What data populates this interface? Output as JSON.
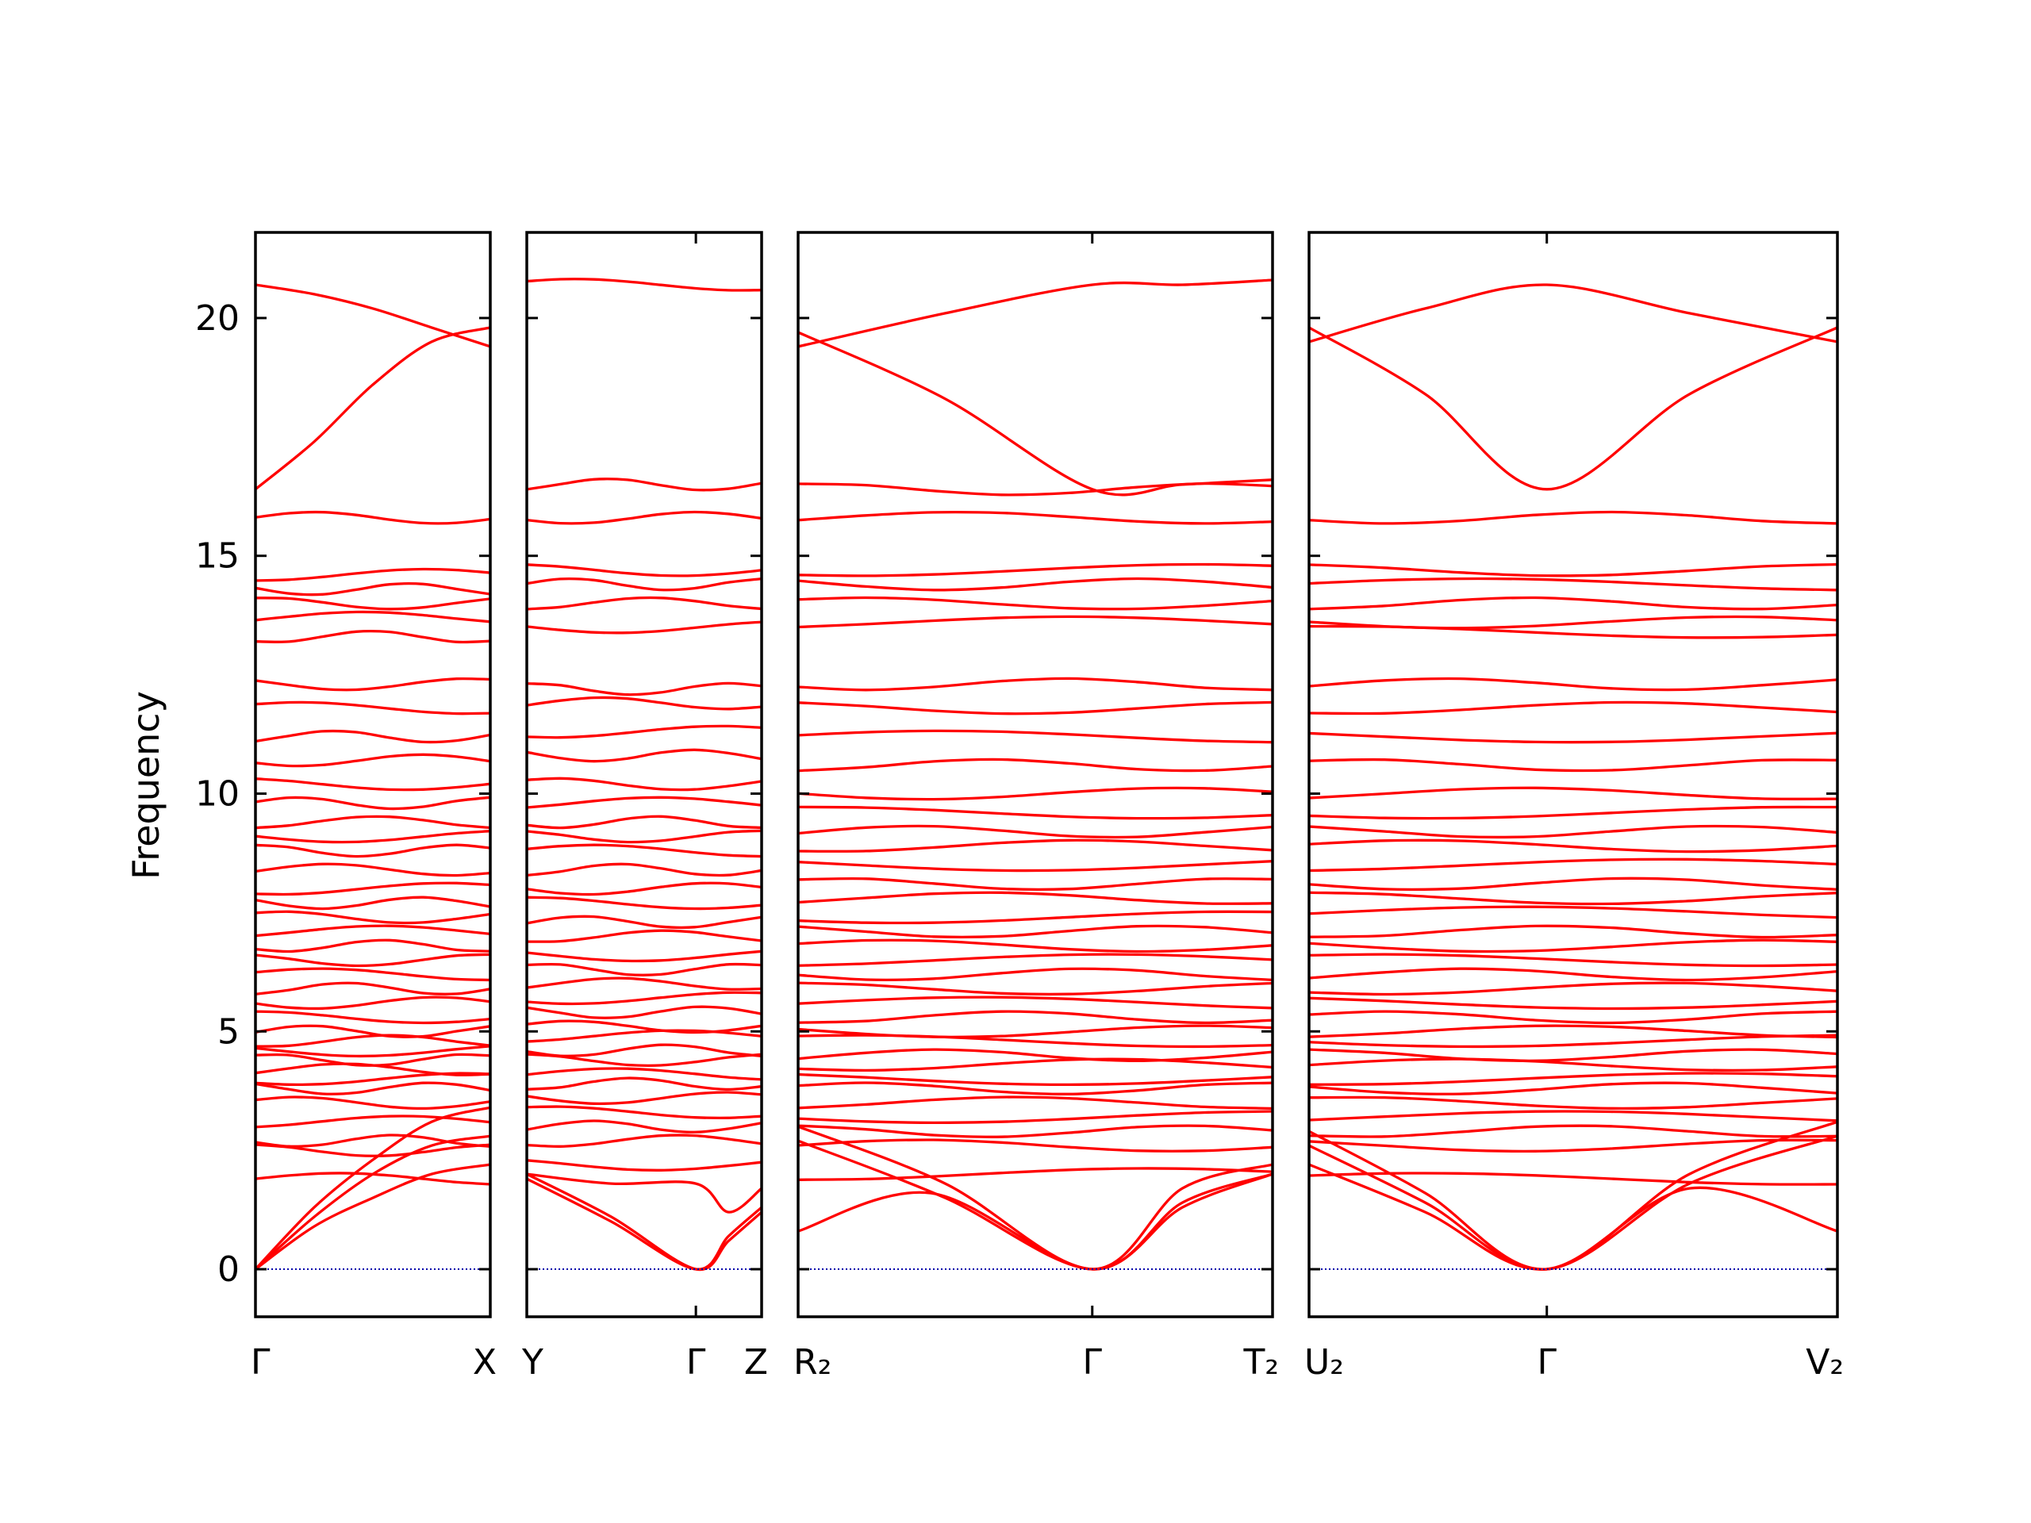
{
  "chart_data": {
    "type": "line",
    "ylabel": "Frequency",
    "ylim": [
      -1,
      21.8
    ],
    "yticks": [
      0,
      5,
      10,
      15,
      20
    ],
    "band_color": "#ff0000",
    "zero_line_color": "#0000aa",
    "segments": [
      {
        "x_labels": [
          {
            "text": "Γ",
            "pos": 0
          },
          {
            "text": "X",
            "pos": 1
          }
        ],
        "flat_bands": [
          1.9,
          2.5,
          2.7,
          3.1,
          3.5,
          3.8,
          4.0,
          4.2,
          4.4,
          4.6,
          4.8,
          5.0,
          5.3,
          5.6,
          5.9,
          6.2,
          6.5,
          6.8,
          7.1,
          7.4,
          7.7,
          8.0,
          8.4,
          8.8,
          9.1,
          9.4,
          9.8,
          10.2,
          10.7,
          11.2,
          11.8,
          12.3,
          13.3,
          13.7,
          14.0,
          14.3,
          14.6,
          15.8
        ],
        "curved_bands": [
          {
            "x": [
              0,
              0.25,
              0.5,
              0.75,
              1
            ],
            "y": [
              0,
              0.9,
              1.5,
              2.0,
              2.2
            ]
          },
          {
            "x": [
              0,
              0.25,
              0.5,
              0.75,
              1
            ],
            "y": [
              0,
              1.1,
              2.0,
              2.6,
              2.8
            ]
          },
          {
            "x": [
              0,
              0.25,
              0.5,
              0.75,
              1
            ],
            "y": [
              0,
              1.3,
              2.3,
              3.1,
              3.4
            ]
          },
          {
            "x": [
              0,
              0.25,
              0.5,
              0.75,
              1
            ],
            "y": [
              20.7,
              20.5,
              20.2,
              19.8,
              19.4
            ]
          },
          {
            "x": [
              0,
              0.25,
              0.5,
              0.75,
              1
            ],
            "y": [
              16.4,
              17.4,
              18.6,
              19.5,
              19.8
            ]
          }
        ]
      },
      {
        "x_labels": [
          {
            "text": "Y",
            "pos": 0
          },
          {
            "text": "Γ",
            "pos": 0.72
          },
          {
            "text": "Z",
            "pos": 1
          }
        ],
        "flat_bands": [
          2.2,
          2.7,
          3.0,
          3.3,
          3.6,
          3.9,
          4.1,
          4.4,
          4.6,
          4.9,
          5.1,
          5.4,
          5.7,
          6.0,
          6.3,
          6.6,
          7.0,
          7.3,
          7.7,
          8.0,
          8.4,
          8.8,
          9.1,
          9.4,
          9.8,
          10.2,
          10.8,
          11.3,
          11.9,
          12.2,
          13.5,
          14.0,
          14.4,
          14.7,
          15.8,
          16.5,
          20.7
        ],
        "curved_bands": [
          {
            "x": [
              0,
              0.36,
              0.72,
              0.86,
              1
            ],
            "y": [
              2.0,
              1.1,
              0,
              0.6,
              1.2
            ]
          },
          {
            "x": [
              0,
              0.36,
              0.72,
              0.86,
              1
            ],
            "y": [
              1.9,
              1.0,
              0,
              0.7,
              1.3
            ]
          },
          {
            "x": [
              0,
              0.36,
              0.72,
              0.86,
              1
            ],
            "y": [
              2.0,
              1.8,
              1.8,
              1.2,
              1.7
            ]
          }
        ]
      },
      {
        "x_labels": [
          {
            "text": "R₂",
            "pos": 0
          },
          {
            "text": "Γ",
            "pos": 0.62
          },
          {
            "text": "T₂",
            "pos": 1
          }
        ],
        "flat_bands": [
          2.0,
          2.6,
          2.9,
          3.2,
          3.5,
          3.8,
          4.0,
          4.3,
          4.5,
          4.8,
          5.0,
          5.3,
          5.6,
          5.9,
          6.2,
          6.5,
          6.8,
          7.1,
          7.4,
          7.8,
          8.1,
          8.5,
          8.9,
          9.2,
          9.6,
          10.0,
          10.6,
          11.2,
          11.8,
          12.3,
          13.6,
          14.0,
          14.4,
          14.7,
          15.8,
          16.4
        ],
        "curved_bands": [
          {
            "x": [
              0,
              0.28,
              0.62,
              0.81,
              1
            ],
            "y": [
              0.8,
              1.6,
              0,
              1.4,
              2.0
            ]
          },
          {
            "x": [
              0,
              0.31,
              0.62,
              0.81,
              1
            ],
            "y": [
              2.7,
              1.5,
              0,
              1.3,
              2.0
            ]
          },
          {
            "x": [
              0,
              0.31,
              0.62,
              0.81,
              1
            ],
            "y": [
              3.0,
              1.8,
              0,
              1.7,
              2.2
            ]
          },
          {
            "x": [
              0,
              0.31,
              0.62,
              0.81,
              1
            ],
            "y": [
              19.4,
              20.1,
              20.7,
              20.7,
              20.8
            ]
          },
          {
            "x": [
              0,
              0.31,
              0.62,
              0.81,
              1
            ],
            "y": [
              19.7,
              18.3,
              16.4,
              16.5,
              16.6
            ]
          }
        ]
      },
      {
        "x_labels": [
          {
            "text": "U₂",
            "pos": 0
          },
          {
            "text": "Γ",
            "pos": 0.45
          },
          {
            "text": "V₂",
            "pos": 1
          }
        ],
        "flat_bands": [
          1.9,
          2.6,
          2.9,
          3.2,
          3.5,
          3.8,
          4.0,
          4.3,
          4.5,
          4.8,
          5.0,
          5.3,
          5.6,
          5.9,
          6.2,
          6.5,
          6.8,
          7.1,
          7.5,
          7.8,
          8.1,
          8.5,
          8.9,
          9.2,
          9.6,
          10.0,
          10.6,
          11.2,
          11.8,
          12.3,
          13.4,
          13.6,
          14.0,
          14.4,
          14.7,
          15.8
        ],
        "curved_bands": [
          {
            "x": [
              0,
              0.22,
              0.45,
              0.72,
              1
            ],
            "y": [
              2.2,
              1.2,
              0,
              1.7,
              0.8
            ]
          },
          {
            "x": [
              0,
              0.22,
              0.45,
              0.72,
              1
            ],
            "y": [
              2.6,
              1.4,
              0,
              1.8,
              2.8
            ]
          },
          {
            "x": [
              0,
              0.22,
              0.45,
              0.72,
              1
            ],
            "y": [
              2.9,
              1.6,
              0,
              2.0,
              3.1
            ]
          },
          {
            "x": [
              0,
              0.22,
              0.45,
              0.72,
              1
            ],
            "y": [
              19.5,
              20.2,
              20.7,
              20.1,
              19.5
            ]
          },
          {
            "x": [
              0,
              0.22,
              0.45,
              0.72,
              1
            ],
            "y": [
              19.8,
              18.4,
              16.4,
              18.4,
              19.8
            ]
          }
        ]
      }
    ]
  }
}
